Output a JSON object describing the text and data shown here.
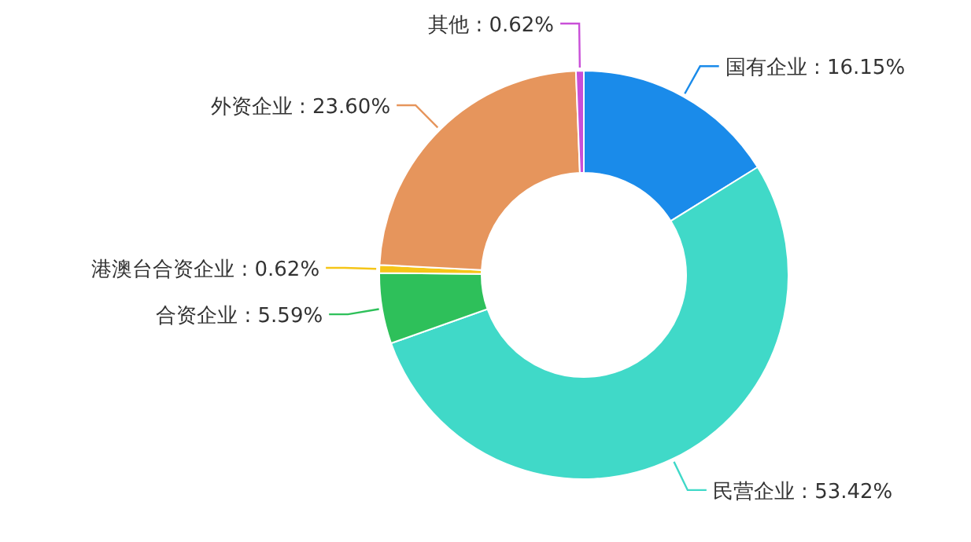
{
  "chart_data": {
    "type": "donut",
    "categories": [
      "国有企业",
      "民营企业",
      "合资企业",
      "港澳台合资企业",
      "外资企业",
      "其他"
    ],
    "values": [
      16.15,
      53.42,
      5.59,
      0.62,
      23.6,
      0.62
    ],
    "value_labels": [
      "16.15%",
      "53.42%",
      "5.59%",
      "0.62%",
      "23.60%",
      "0.62%"
    ],
    "colors": [
      "#1a8bea",
      "#40d9c8",
      "#2ec05a",
      "#f5c518",
      "#e6955c",
      "#c94fd8"
    ]
  }
}
